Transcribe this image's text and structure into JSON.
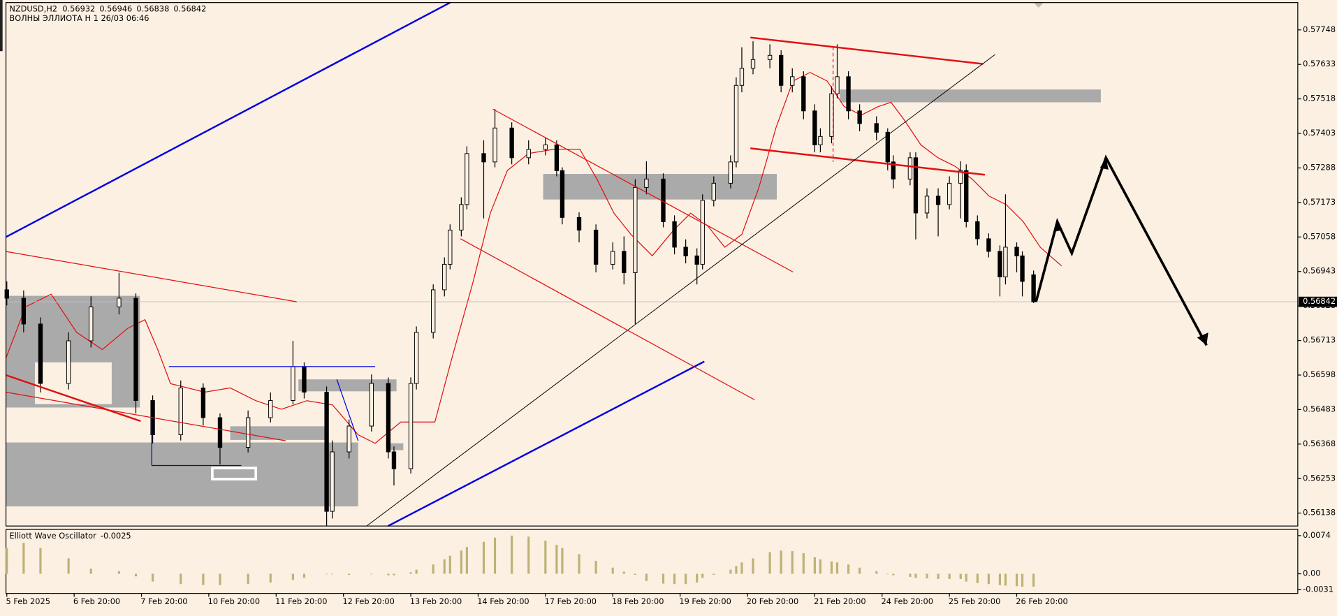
{
  "chart_data": [
    {
      "type": "candlestick",
      "title": "NZDUSD,H2",
      "subtitle": "ВОЛНЫ ЭЛЛИОТА H 1 26/03 06:46",
      "x": [
        0,
        3,
        6,
        11,
        15,
        20,
        23,
        26,
        31,
        35,
        38,
        43,
        47,
        51,
        53,
        57,
        58,
        61,
        65,
        68,
        69,
        72,
        73,
        76,
        78,
        79,
        81,
        82,
        85,
        87,
        90,
        93,
        96,
        98,
        99,
        102,
        105,
        108,
        110,
        112,
        114,
        117,
        119,
        121,
        123,
        124,
        126,
        129,
        130,
        131,
        133,
        136,
        138,
        140,
        142,
        144,
        145,
        147,
        148,
        150,
        152,
        155,
        157,
        158,
        161,
        162,
        164,
        166,
        168,
        170,
        171,
        173,
        175,
        177,
        178,
        180,
        181,
        183
      ],
      "open": [
        0.56882,
        0.56854,
        0.56768,
        0.5657,
        0.56712,
        0.56825,
        0.56854,
        0.56513,
        0.56399,
        0.56555,
        0.56456,
        0.56357,
        0.56456,
        0.56513,
        0.56626,
        0.56541,
        0.56144,
        0.56342,
        0.56428,
        0.5657,
        0.56342,
        0.56286,
        0.5657,
        0.5674,
        0.56882,
        0.56967,
        0.57081,
        0.57166,
        0.57336,
        0.57308,
        0.57421,
        0.57322,
        0.5735,
        0.57365,
        0.57279,
        0.57123,
        0.57081,
        0.56967,
        0.5701,
        0.56939,
        0.57223,
        0.57251,
        0.57109,
        0.57024,
        0.56995,
        0.56967,
        0.5718,
        0.57237,
        0.57308,
        0.57563,
        0.5762,
        0.57649,
        0.57663,
        0.57563,
        0.57592,
        0.57478,
        0.57365,
        0.57393,
        0.57535,
        0.57592,
        0.57478,
        0.57436,
        0.57407,
        0.57308,
        0.57251,
        0.57322,
        0.57138,
        0.57194,
        0.57166,
        0.57237,
        0.57279,
        0.57109,
        0.57052,
        0.5701,
        0.56925,
        0.57024,
        0.56995,
        0.56932
      ],
      "high": [
        0.5691,
        0.5688,
        0.5679,
        0.5674,
        0.5686,
        0.56939,
        0.5687,
        0.5653,
        0.5658,
        0.5657,
        0.5647,
        0.5648,
        0.5654,
        0.56712,
        0.5664,
        0.5656,
        0.5638,
        0.5645,
        0.566,
        0.5659,
        0.5636,
        0.5659,
        0.5676,
        0.569,
        0.5699,
        0.571,
        0.5719,
        0.5736,
        0.5738,
        0.57484,
        0.5744,
        0.5738,
        0.5739,
        0.5738,
        0.5729,
        0.5714,
        0.571,
        0.5704,
        0.5706,
        0.5725,
        0.5731,
        0.5727,
        0.5713,
        0.5705,
        0.5702,
        0.572,
        0.5726,
        0.5733,
        0.5759,
        0.5769,
        0.5771,
        0.577,
        0.5768,
        0.5762,
        0.5761,
        0.575,
        0.5742,
        0.5756,
        0.577,
        0.5761,
        0.575,
        0.5746,
        0.5742,
        0.5733,
        0.5734,
        0.5734,
        0.5722,
        0.5722,
        0.5726,
        0.5731,
        0.573,
        0.5713,
        0.5707,
        0.5703,
        0.572,
        0.5704,
        0.5701,
        0.56946
      ],
      "low": [
        0.5683,
        0.5674,
        0.5654,
        0.5655,
        0.5669,
        0.568,
        0.5647,
        0.5637,
        0.5638,
        0.5643,
        0.563,
        0.5634,
        0.5644,
        0.565,
        0.5652,
        0.56095,
        0.5612,
        0.5632,
        0.5641,
        0.5632,
        0.5623,
        0.5627,
        0.5655,
        0.5672,
        0.5686,
        0.5695,
        0.5706,
        0.5715,
        0.5712,
        0.5729,
        0.573,
        0.573,
        0.5733,
        0.5726,
        0.571,
        0.5704,
        0.5694,
        0.5695,
        0.569,
        0.56768,
        0.572,
        0.5709,
        0.57,
        0.5697,
        0.569,
        0.5695,
        0.5716,
        0.5722,
        0.5729,
        0.5754,
        0.576,
        0.5762,
        0.5754,
        0.5754,
        0.5745,
        0.5734,
        0.5734,
        0.5737,
        0.5752,
        0.5745,
        0.5741,
        0.5738,
        0.5728,
        0.5722,
        0.5723,
        0.5705,
        0.5712,
        0.5706,
        0.5715,
        0.5712,
        0.5709,
        0.5703,
        0.5699,
        0.5686,
        0.569,
        0.5694,
        0.5686,
        0.56838
      ],
      "close": [
        0.56854,
        0.56768,
        0.5657,
        0.56712,
        0.56825,
        0.56854,
        0.56513,
        0.56399,
        0.56555,
        0.56456,
        0.56357,
        0.56456,
        0.56513,
        0.56626,
        0.56541,
        0.56144,
        0.56342,
        0.56428,
        0.5657,
        0.56342,
        0.56286,
        0.5657,
        0.5674,
        0.56882,
        0.56967,
        0.57081,
        0.57166,
        0.57336,
        0.57308,
        0.57421,
        0.57322,
        0.5735,
        0.57365,
        0.57279,
        0.57123,
        0.57081,
        0.56967,
        0.5701,
        0.56939,
        0.57223,
        0.57251,
        0.57109,
        0.57024,
        0.56995,
        0.56967,
        0.5718,
        0.57237,
        0.57308,
        0.57563,
        0.5762,
        0.57649,
        0.57663,
        0.57563,
        0.57592,
        0.57478,
        0.57365,
        0.57393,
        0.57535,
        0.57592,
        0.57478,
        0.57436,
        0.57407,
        0.57308,
        0.57251,
        0.57322,
        0.57138,
        0.57194,
        0.57166,
        0.57237,
        0.57279,
        0.57109,
        0.57052,
        0.5701,
        0.56925,
        0.57024,
        0.56995,
        0.5691,
        0.56842
      ],
      "up_color": "#fcf0e3",
      "down_color": "#000000",
      "wick_color": "#000000",
      "xlim": [
        0,
        230
      ],
      "xticks": [
        {
          "value": 0,
          "label": "5 Feb 2025"
        },
        {
          "value": 12,
          "label": "6 Feb 20:00"
        },
        {
          "value": 24,
          "label": "7 Feb 20:00"
        },
        {
          "value": 36,
          "label": "10 Feb 20:00"
        },
        {
          "value": 48,
          "label": "11 Feb 20:00"
        },
        {
          "value": 60,
          "label": "12 Feb 20:00"
        },
        {
          "value": 72,
          "label": "13 Feb 20:00"
        },
        {
          "value": 84,
          "label": "14 Feb 20:00"
        },
        {
          "value": 96,
          "label": "17 Feb 20:00"
        },
        {
          "value": 108,
          "label": "18 Feb 20:00"
        },
        {
          "value": 120,
          "label": "19 Feb 20:00"
        },
        {
          "value": 132,
          "label": "20 Feb 20:00"
        },
        {
          "value": 144,
          "label": "21 Feb 20:00"
        },
        {
          "value": 156,
          "label": "24 Feb 20:00"
        },
        {
          "value": 168,
          "label": "25 Feb 20:00"
        },
        {
          "value": 180,
          "label": "26 Feb 20:00"
        }
      ],
      "ylim": [
        0.56095,
        0.57839
      ],
      "yticks": [
        0.57748,
        0.57633,
        0.57518,
        0.57403,
        0.57288,
        0.57173,
        0.57058,
        0.56943,
        0.56828,
        0.56713,
        0.56598,
        0.56483,
        0.56368,
        0.56253,
        0.56138
      ]
    },
    {
      "type": "bar",
      "title": "Elliott Wave Oscillator",
      "color": "#bdb274",
      "x": [
        0,
        3,
        6,
        11,
        15,
        20,
        23,
        26,
        31,
        35,
        38,
        43,
        47,
        51,
        53,
        57,
        58,
        61,
        65,
        68,
        69,
        72,
        73,
        76,
        78,
        79,
        81,
        82,
        85,
        87,
        90,
        93,
        96,
        98,
        99,
        102,
        105,
        108,
        110,
        112,
        114,
        117,
        119,
        121,
        123,
        124,
        126,
        129,
        130,
        131,
        133,
        136,
        138,
        140,
        142,
        144,
        145,
        147,
        148,
        150,
        152,
        155,
        157,
        158,
        161,
        162,
        164,
        166,
        168,
        170,
        171,
        173,
        175,
        177,
        178,
        180,
        181,
        183
      ],
      "values": [
        0.005,
        0.006,
        0.005,
        0.003,
        0.001,
        0.0005,
        -0.0005,
        -0.0015,
        -0.002,
        -0.0022,
        -0.0022,
        -0.002,
        -0.0017,
        -0.0012,
        -0.0008,
        0,
        0,
        -0.0002,
        0,
        -0.0003,
        -0.0003,
        0.0003,
        0.0008,
        0.0018,
        0.0028,
        0.0035,
        0.0045,
        0.0052,
        0.0062,
        0.007,
        0.0074,
        0.0072,
        0.0064,
        0.0056,
        0.005,
        0.0038,
        0.0025,
        0.0012,
        0.0004,
        -0.0002,
        -0.0014,
        -0.0019,
        -0.002,
        -0.002,
        -0.0017,
        -0.0008,
        -0.0002,
        0.0008,
        0.0015,
        0.0022,
        0.003,
        0.0042,
        0.0045,
        0.0044,
        0.004,
        0.0032,
        0.0028,
        0.0024,
        0.0022,
        0.0018,
        0.0012,
        0.0005,
        0,
        -0.0003,
        -0.0006,
        -0.0008,
        -0.0009,
        -0.001,
        -0.001,
        -0.001,
        -0.0015,
        -0.0018,
        -0.002,
        -0.0022,
        -0.0023,
        -0.0024,
        -0.0025,
        -0.0025
      ],
      "xlim": [
        0,
        230
      ],
      "ylim": [
        -0.0038,
        0.0086
      ],
      "yticks": [
        0.0074,
        {
          "value": 0,
          "label": "0.00"
        },
        -0.0031
      ]
    }
  ]
}
